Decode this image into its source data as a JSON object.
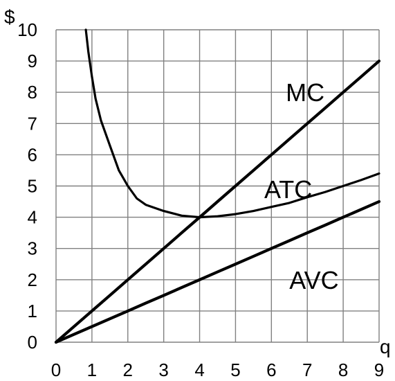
{
  "chart_data": {
    "type": "line",
    "title": "",
    "xlabel": "q",
    "ylabel": "$",
    "xlim": [
      0,
      9
    ],
    "ylim": [
      0,
      10
    ],
    "grid": true,
    "x_ticks": [
      "0",
      "1",
      "2",
      "3",
      "4",
      "5",
      "6",
      "7",
      "8",
      "9"
    ],
    "y_ticks": [
      "0",
      "1",
      "2",
      "3",
      "4",
      "5",
      "6",
      "7",
      "8",
      "9",
      "10"
    ],
    "colors": {
      "line": "#000000",
      "grid": "#808080",
      "background": "#ffffff"
    },
    "series": [
      {
        "name": "MC",
        "x": [
          0,
          0.5,
          1,
          1.5,
          2,
          2.5,
          3,
          3.5,
          4,
          4.5,
          5,
          5.5,
          6,
          6.5,
          7,
          7.5,
          8,
          8.5,
          9
        ],
        "values": [
          0,
          0.5,
          1,
          1.5,
          2,
          2.5,
          3,
          3.5,
          4,
          4.5,
          5,
          5.5,
          6,
          6.5,
          7,
          7.5,
          8,
          8.5,
          9
        ]
      },
      {
        "name": "ATC",
        "x": [
          0.83,
          0.9,
          1,
          1.1,
          1.25,
          1.5,
          1.75,
          2,
          2.25,
          2.5,
          3,
          3.5,
          4,
          4.5,
          5,
          5.5,
          6,
          6.5,
          7,
          7.5,
          8,
          8.5,
          9
        ],
        "values": [
          10,
          9.3,
          8.5,
          7.8,
          7.1,
          6.3,
          5.5,
          5.0,
          4.6,
          4.4,
          4.2,
          4.05,
          4.0,
          4.03,
          4.1,
          4.2,
          4.33,
          4.46,
          4.64,
          4.81,
          5.0,
          5.19,
          5.4
        ]
      },
      {
        "name": "AVC",
        "x": [
          0,
          0.5,
          1,
          1.5,
          2,
          2.5,
          3,
          3.5,
          4,
          4.5,
          5,
          5.5,
          6,
          6.5,
          7,
          7.5,
          8,
          8.5,
          9
        ],
        "values": [
          0,
          0.25,
          0.5,
          0.75,
          1,
          1.25,
          1.5,
          1.75,
          2,
          2.25,
          2.5,
          2.75,
          3,
          3.25,
          3.5,
          3.75,
          4,
          4.25,
          4.5
        ]
      }
    ]
  }
}
